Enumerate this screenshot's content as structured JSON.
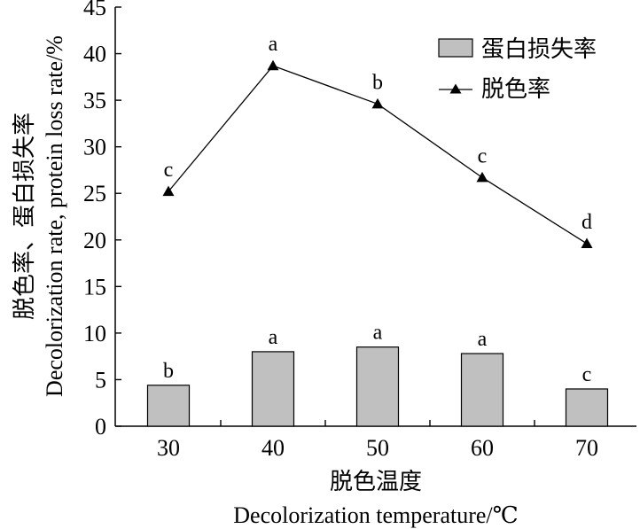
{
  "chart_data": {
    "type": "bar+line",
    "categories": [
      "30",
      "40",
      "50",
      "60",
      "70"
    ],
    "series": [
      {
        "name": "蛋白损失率",
        "kind": "bar",
        "values": [
          4.4,
          8.0,
          8.5,
          7.8,
          4.0
        ],
        "labels": [
          "b",
          "a",
          "a",
          "a",
          "c"
        ],
        "color": "#c0c0c0"
      },
      {
        "name": "脱色率",
        "kind": "line",
        "marker": "triangle",
        "values": [
          25.2,
          38.7,
          34.6,
          26.7,
          19.6
        ],
        "labels": [
          "c",
          "a",
          "b",
          "c",
          "d"
        ],
        "color": "#000000"
      }
    ],
    "xlabel_cn": "脱色温度",
    "xlabel_en": "Decolorization temperature/℃",
    "ylabel_cn": "脱色率、蛋白损失率",
    "ylabel_en": "Decolorization rate, protein loss rate/%",
    "ylim": [
      0,
      45
    ],
    "yticks": [
      0,
      5,
      10,
      15,
      20,
      25,
      30,
      35,
      40,
      45
    ],
    "grid": false,
    "legend": "top-right"
  }
}
